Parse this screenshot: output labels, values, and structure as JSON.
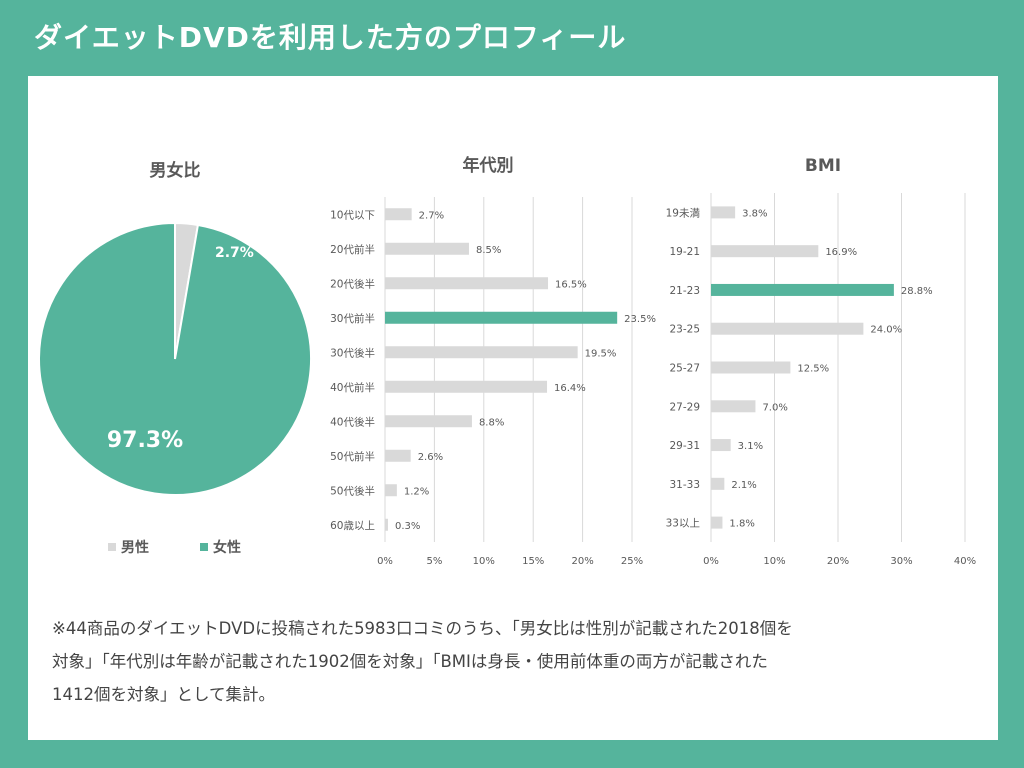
{
  "header": {
    "title": "ダイエットDVDを利用した方のプロフィール"
  },
  "colors": {
    "accent": "#55b49c",
    "bar_gray": "#d9d9d9",
    "grid": "#d9d9d9",
    "text": "#595959"
  },
  "note": {
    "lines": [
      "※44商品のダイエットDVDに投稿された5983口コミのうち、「男女比は性別が記載された2018個を",
      "対象」「年代別は年齢が記載された1902個を対象」「BMIは身長・使用前体重の両方が記載された",
      "1412個を対象」として集計。"
    ]
  },
  "chart_data": [
    {
      "type": "pie",
      "title": "男女比",
      "categories": [
        "男性",
        "女性"
      ],
      "values": [
        2.7,
        97.3
      ],
      "labels": [
        "2.7%",
        "97.3%"
      ],
      "colors": [
        "#d9d9d9",
        "#55b49c"
      ],
      "legend": "bottom"
    },
    {
      "type": "bar",
      "orientation": "horizontal",
      "title": "年代別",
      "categories": [
        "10代以下",
        "20代前半",
        "20代後半",
        "30代前半",
        "30代後半",
        "40代前半",
        "40代後半",
        "50代前半",
        "50代後半",
        "60歳以上"
      ],
      "values": [
        2.7,
        8.5,
        16.5,
        23.5,
        19.5,
        16.4,
        8.8,
        2.6,
        1.2,
        0.3
      ],
      "labels": [
        "2.7%",
        "8.5%",
        "16.5%",
        "23.5%",
        "19.5%",
        "16.4%",
        "8.8%",
        "2.6%",
        "1.2%",
        "0.3%"
      ],
      "highlight_index": 3,
      "xlim": [
        0,
        25
      ],
      "xticks": [
        0,
        5,
        10,
        15,
        20,
        25
      ],
      "xtick_labels": [
        "0%",
        "5%",
        "10%",
        "15%",
        "20%",
        "25%"
      ],
      "grid": true
    },
    {
      "type": "bar",
      "orientation": "horizontal",
      "title": "BMI",
      "categories": [
        "19未満",
        "19-21",
        "21-23",
        "23-25",
        "25-27",
        "27-29",
        "29-31",
        "31-33",
        "33以上"
      ],
      "values": [
        3.8,
        16.9,
        28.8,
        24.0,
        12.5,
        7.0,
        3.1,
        2.1,
        1.8
      ],
      "labels": [
        "3.8%",
        "16.9%",
        "28.8%",
        "24.0%",
        "12.5%",
        "7.0%",
        "3.1%",
        "2.1%",
        "1.8%"
      ],
      "highlight_index": 2,
      "xlim": [
        0,
        40
      ],
      "xticks": [
        0,
        10,
        20,
        30,
        40
      ],
      "xtick_labels": [
        "0%",
        "10%",
        "20%",
        "30%",
        "40%"
      ],
      "grid": true
    }
  ]
}
